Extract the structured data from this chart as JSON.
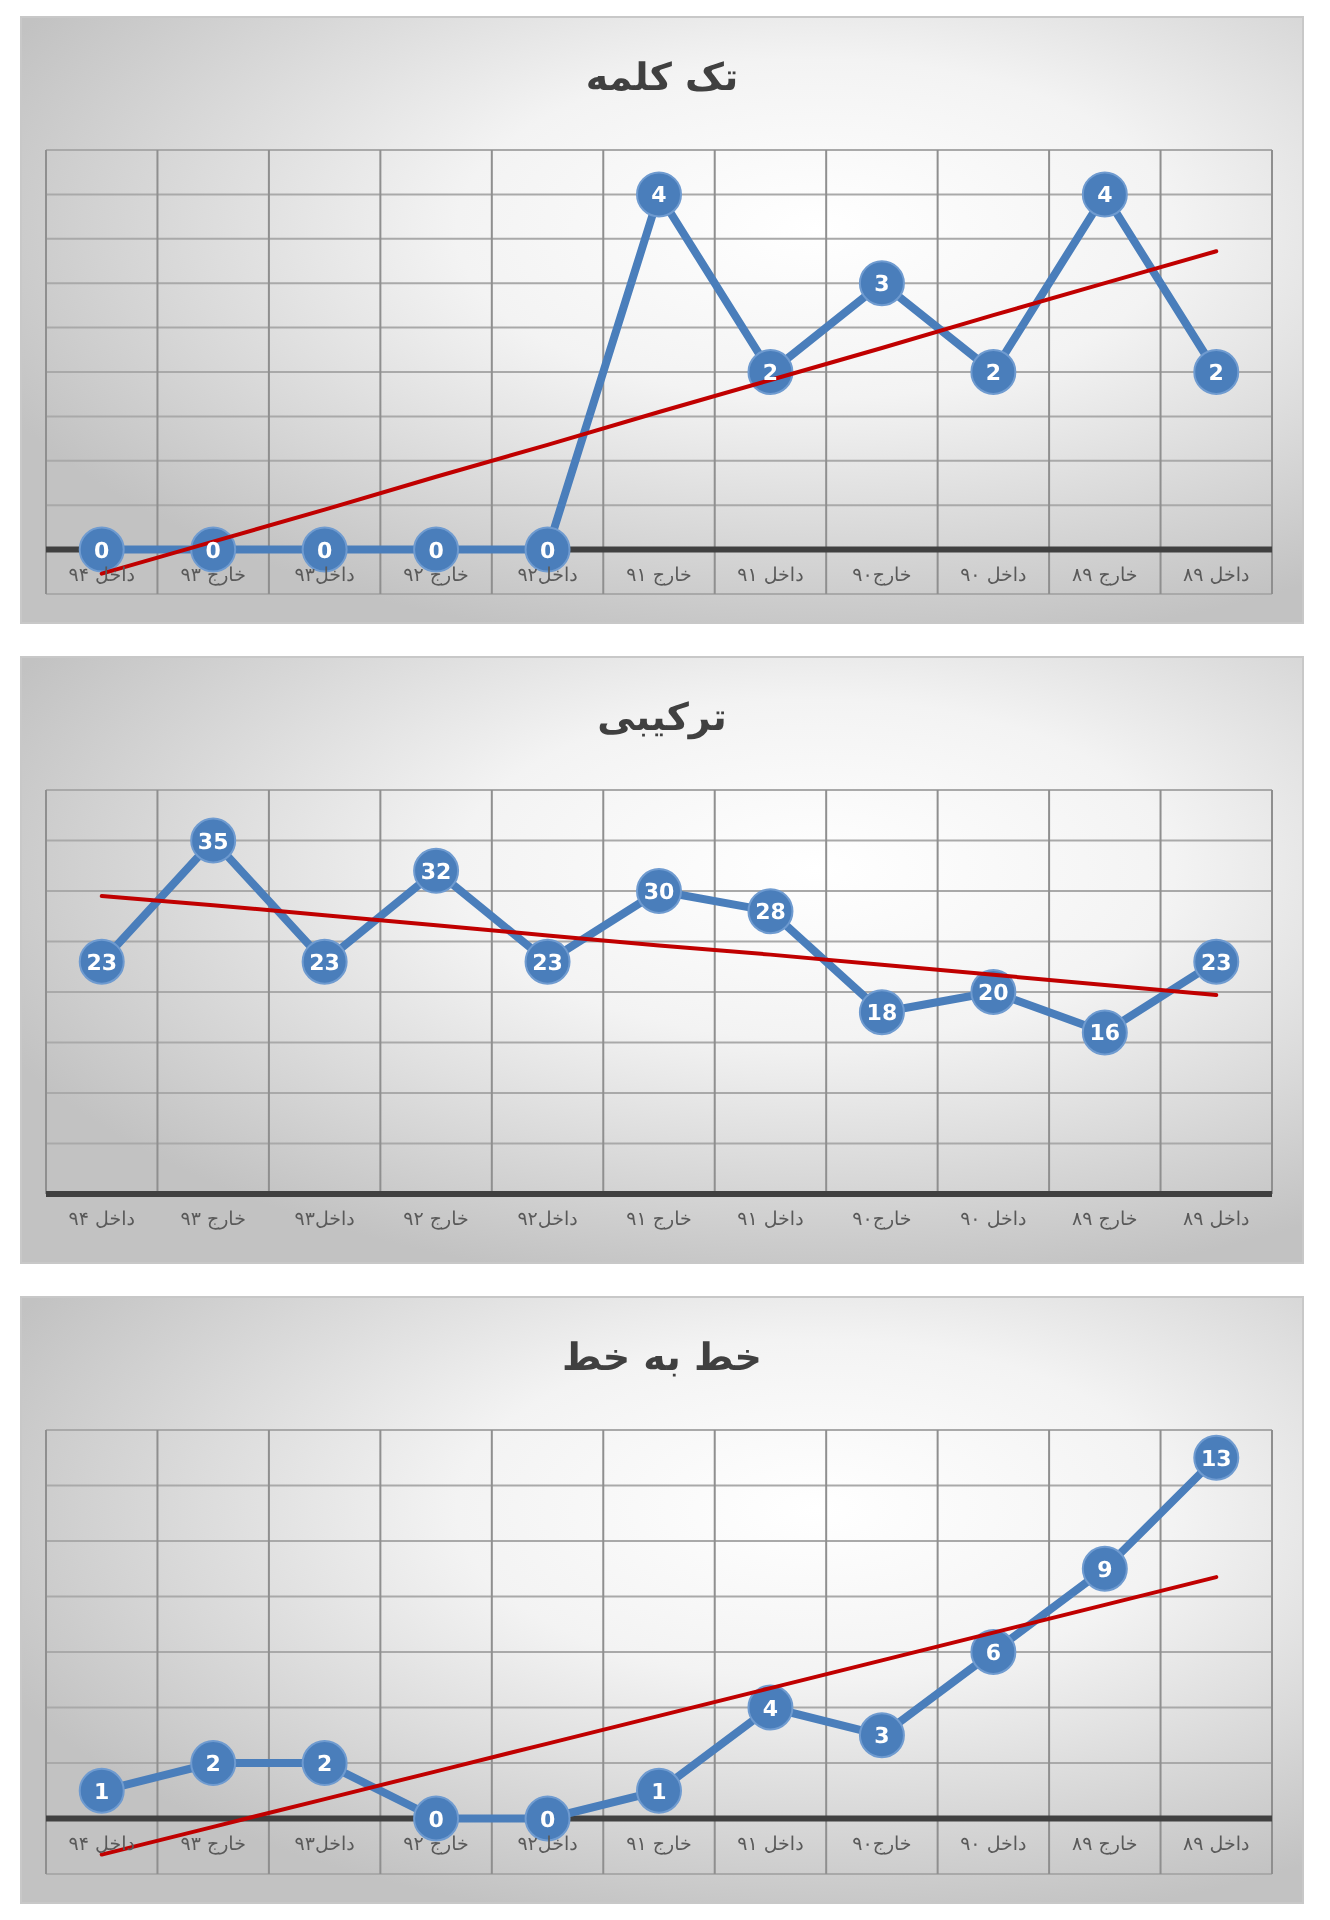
{
  "chart_data": [
    {
      "type": "line",
      "title": "تک کلمه",
      "categories": [
        "داخل ۹۴",
        "خارج ۹۳",
        "داخل۹۳",
        "خارج ۹۲",
        "داخل۹۲",
        "خارج ۹۱",
        "داخل ۹۱",
        "خارج۹۰",
        "داخل ۹۰",
        "خارج ۸۹",
        "داخل ۸۹"
      ],
      "ylim": [
        -0.5,
        4.5
      ],
      "yticks": [
        {
          "value": -0.5,
          "label": null
        },
        {
          "value": 0,
          "label": null
        },
        {
          "value": 0.5,
          "label": null
        },
        {
          "value": 1,
          "label": null
        },
        {
          "value": 1.5,
          "label": null
        },
        {
          "value": 2,
          "label": null
        },
        {
          "value": 2.5,
          "label": null
        },
        {
          "value": 3,
          "label": null
        },
        {
          "value": 3.5,
          "label": null
        },
        {
          "value": 4,
          "label": null
        },
        {
          "value": 4.5,
          "label": null
        }
      ],
      "tick_labels": "x",
      "grid": true,
      "series": [
        {
          "color": "#4a7ebb",
          "marker": "circle",
          "values": [
            0,
            0,
            0,
            0,
            0,
            4,
            2,
            3,
            2,
            4,
            2
          ],
          "value_labels": [
            "0",
            "0",
            "0",
            "0",
            "0",
            "4",
            "2",
            "3",
            "2",
            "4",
            "2"
          ]
        },
        {
          "type": "line",
          "color": "#c00000",
          "marker": "none",
          "values": [
            -0.27,
            0.09,
            0.45,
            0.82,
            1.18,
            1.55,
            1.91,
            2.27,
            2.64,
            3.0,
            3.36
          ]
        }
      ]
    },
    {
      "type": "line",
      "title": "ترکیبی",
      "categories": [
        "داخل ۹۴",
        "خارج ۹۳",
        "داخل۹۳",
        "خارج ۹۲",
        "داخل۹۲",
        "خارج ۹۱",
        "داخل ۹۱",
        "خارج۹۰",
        "داخل ۹۰",
        "خارج ۸۹",
        "داخل ۸۹"
      ],
      "ylim": [
        0,
        40
      ],
      "yticks": [
        {
          "value": 0,
          "label": null
        },
        {
          "value": 5,
          "label": null
        },
        {
          "value": 10,
          "label": null
        },
        {
          "value": 15,
          "label": null
        },
        {
          "value": 20,
          "label": null
        },
        {
          "value": 25,
          "label": null
        },
        {
          "value": 30,
          "label": null
        },
        {
          "value": 35,
          "label": null
        },
        {
          "value": 40,
          "label": null
        }
      ],
      "tick_labels": "x",
      "grid": true,
      "series": [
        {
          "color": "#4a7ebb",
          "marker": "circle",
          "values": [
            23,
            35,
            23,
            32,
            23,
            30,
            28,
            18,
            20,
            16,
            23
          ],
          "value_labels": [
            "23",
            "35",
            "23",
            "32",
            "23",
            "30",
            "28",
            "18",
            "20",
            "16",
            "23"
          ]
        },
        {
          "type": "line",
          "color": "#c00000",
          "marker": "none",
          "values": [
            29.5,
            28.6,
            27.6,
            26.6,
            25.6,
            24.6,
            23.7,
            22.7,
            21.7,
            20.7,
            19.7
          ]
        }
      ]
    },
    {
      "type": "line",
      "title": "خط به خط",
      "categories": [
        "داخل ۹۴",
        "خارج ۹۳",
        "داخل۹۳",
        "خارج ۹۲",
        "داخل۹۲",
        "خارج ۹۱",
        "داخل ۹۱",
        "خارج۹۰",
        "داخل ۹۰",
        "خارج ۸۹",
        "داخل ۸۹"
      ],
      "ylim": [
        -2,
        14
      ],
      "yticks": [
        {
          "value": -2,
          "label": null
        },
        {
          "value": 0,
          "label": null
        },
        {
          "value": 2,
          "label": null
        },
        {
          "value": 4,
          "label": null
        },
        {
          "value": 6,
          "label": null
        },
        {
          "value": 8,
          "label": null
        },
        {
          "value": 10,
          "label": null
        },
        {
          "value": 12,
          "label": null
        },
        {
          "value": 14,
          "label": null
        }
      ],
      "tick_labels": "x",
      "grid": true,
      "series": [
        {
          "color": "#4a7ebb",
          "marker": "circle",
          "values": [
            1,
            2,
            2,
            0,
            0,
            1,
            4,
            3,
            6,
            9,
            13
          ],
          "value_labels": [
            "1",
            "2",
            "2",
            "0",
            "0",
            "1",
            "4",
            "3",
            "6",
            "9",
            "13"
          ]
        },
        {
          "type": "line",
          "color": "#c00000",
          "marker": "none",
          "values": [
            -1.3,
            -0.3,
            0.7,
            1.7,
            2.7,
            3.7,
            4.7,
            5.7,
            6.7,
            7.7,
            8.7
          ]
        }
      ]
    }
  ]
}
